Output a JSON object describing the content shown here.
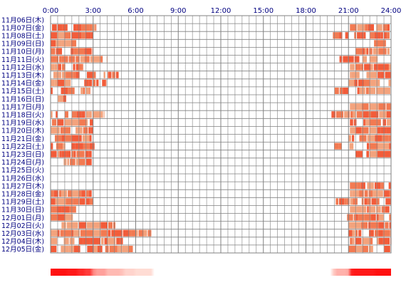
{
  "chart_data": {
    "type": "heatmap",
    "x_ticks": [
      "0:00",
      "3:00",
      "6:00",
      "9:00",
      "12:00",
      "15:00",
      "18:00",
      "21:00",
      "24:00"
    ],
    "x_range_hours": [
      0,
      24
    ],
    "grid": true,
    "colors": {
      "activity": "#f25c3a",
      "activity_alt": "#f27a52",
      "activity_light": "#f3a37d",
      "grid": "#808080",
      "label": "#000080",
      "summary_strong": "#ff1010",
      "summary_light": "#ffe4dc"
    },
    "rows": [
      {
        "label": "11月06日(木)",
        "segments": []
      },
      {
        "label": "11月07日(金)",
        "segments": [
          [
            0.1,
            3.2
          ],
          [
            21.1,
            23.9
          ]
        ]
      },
      {
        "label": "11月08日(土)",
        "segments": [
          [
            0.0,
            3.0
          ],
          [
            19.9,
            21.0
          ],
          [
            21.4,
            23.9
          ]
        ]
      },
      {
        "label": "11月09日(日)",
        "segments": [
          [
            0.0,
            1.9
          ],
          [
            22.8,
            24.0
          ]
        ]
      },
      {
        "label": "11月10日(月)",
        "segments": [
          [
            0.0,
            3.0
          ],
          [
            21.2,
            23.9
          ]
        ]
      },
      {
        "label": "11月11日(火)",
        "segments": [
          [
            0.0,
            4.0
          ],
          [
            20.0,
            24.0
          ]
        ]
      },
      {
        "label": "11月12日(水)",
        "segments": [
          [
            0.0,
            2.3
          ],
          [
            21.1,
            24.0
          ]
        ]
      },
      {
        "label": "11月13日(木)",
        "segments": [
          [
            0.2,
            4.8
          ],
          [
            21.1,
            24.0
          ]
        ]
      },
      {
        "label": "11月14日(金)",
        "segments": [
          [
            0.0,
            3.9
          ],
          [
            21.0,
            24.0
          ]
        ]
      },
      {
        "label": "11月15日(土)",
        "segments": [
          [
            0.0,
            2.8
          ],
          [
            19.8,
            24.0
          ]
        ]
      },
      {
        "label": "11月16日(日)",
        "segments": [
          [
            0.0,
            1.1
          ]
        ]
      },
      {
        "label": "11月17日(月)",
        "segments": [
          [
            21.1,
            24.0
          ]
        ]
      },
      {
        "label": "11月18日(火)",
        "segments": [
          [
            0.0,
            3.8
          ],
          [
            19.8,
            24.0
          ]
        ]
      },
      {
        "label": "11月19日(水)",
        "segments": [
          [
            0.1,
            3.0
          ],
          [
            21.1,
            24.0
          ]
        ]
      },
      {
        "label": "11月20日(木)",
        "segments": [
          [
            0.0,
            3.0
          ],
          [
            21.1,
            24.0
          ]
        ]
      },
      {
        "label": "11月21日(金)",
        "segments": [
          [
            0.3,
            3.1
          ],
          [
            21.0,
            24.0
          ]
        ]
      },
      {
        "label": "11月22日(土)",
        "segments": [
          [
            0.0,
            3.1
          ],
          [
            20.0,
            24.0
          ]
        ]
      },
      {
        "label": "11月23日(日)",
        "segments": [
          [
            0.0,
            2.9
          ],
          [
            21.0,
            24.0
          ]
        ]
      },
      {
        "label": "11月24日(月)",
        "segments": [
          [
            0.0,
            2.9
          ]
        ]
      },
      {
        "label": "11月25日(火)",
        "segments": []
      },
      {
        "label": "11月26日(水)",
        "segments": []
      },
      {
        "label": "11月27日(木)",
        "segments": [
          [
            21.1,
            24.0
          ]
        ]
      },
      {
        "label": "11月28日(金)",
        "segments": [
          [
            0.0,
            2.9
          ],
          [
            21.1,
            24.0
          ]
        ]
      },
      {
        "label": "11月29日(土)",
        "segments": [
          [
            0.0,
            3.0
          ],
          [
            20.1,
            24.0
          ]
        ]
      },
      {
        "label": "11月30日(日)",
        "segments": [
          [
            0.0,
            1.8
          ],
          [
            21.1,
            23.9
          ]
        ]
      },
      {
        "label": "12月01日(月)",
        "segments": [
          [
            0.0,
            2.3
          ],
          [
            20.9,
            24.0
          ]
        ]
      },
      {
        "label": "12月02日(火)",
        "segments": [
          [
            0.2,
            5.2
          ],
          [
            21.0,
            24.0
          ]
        ]
      },
      {
        "label": "12月03日(水)",
        "segments": [
          [
            0.0,
            7.1
          ],
          [
            21.0,
            24.0
          ]
        ]
      },
      {
        "label": "12月04日(木)",
        "segments": [
          [
            0.0,
            5.1
          ],
          [
            21.1,
            24.0
          ]
        ]
      },
      {
        "label": "12月05日(金)",
        "segments": [
          [
            0.0,
            5.8
          ],
          [
            21.0,
            24.0
          ]
        ]
      }
    ]
  }
}
